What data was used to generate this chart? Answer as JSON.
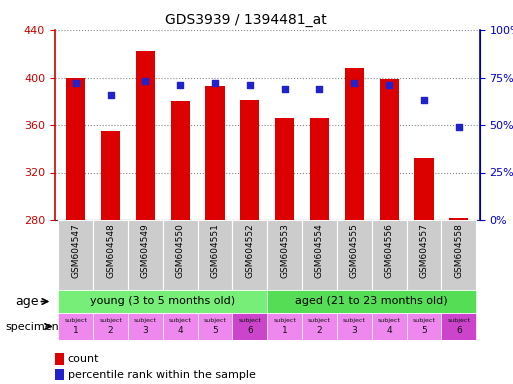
{
  "title": "GDS3939 / 1394481_at",
  "samples": [
    "GSM604547",
    "GSM604548",
    "GSM604549",
    "GSM604550",
    "GSM604551",
    "GSM604552",
    "GSM604553",
    "GSM604554",
    "GSM604555",
    "GSM604556",
    "GSM604557",
    "GSM604558"
  ],
  "counts": [
    400,
    355,
    422,
    380,
    393,
    381,
    366,
    366,
    408,
    399,
    332,
    282
  ],
  "percentiles": [
    72,
    66,
    73,
    71,
    72,
    71,
    69,
    69,
    72,
    71,
    63,
    49
  ],
  "ylim_left": [
    280,
    440
  ],
  "ylim_right": [
    0,
    100
  ],
  "yticks_left": [
    280,
    320,
    360,
    400,
    440
  ],
  "yticks_right": [
    0,
    25,
    50,
    75,
    100
  ],
  "bar_color": "#dd0000",
  "dot_color": "#2222cc",
  "bar_bottom": 280,
  "young_color": "#77ee77",
  "aged_color": "#55dd55",
  "specimen_color_light": "#ee88ee",
  "specimen_color_dark": "#cc44cc",
  "subject_numbers": [
    1,
    2,
    3,
    4,
    5,
    6,
    1,
    2,
    3,
    4,
    5,
    6
  ],
  "xtick_bg": "#cccccc",
  "left_axis_color": "#cc0000",
  "right_axis_color": "#0000cc",
  "grid_color": "#888888"
}
